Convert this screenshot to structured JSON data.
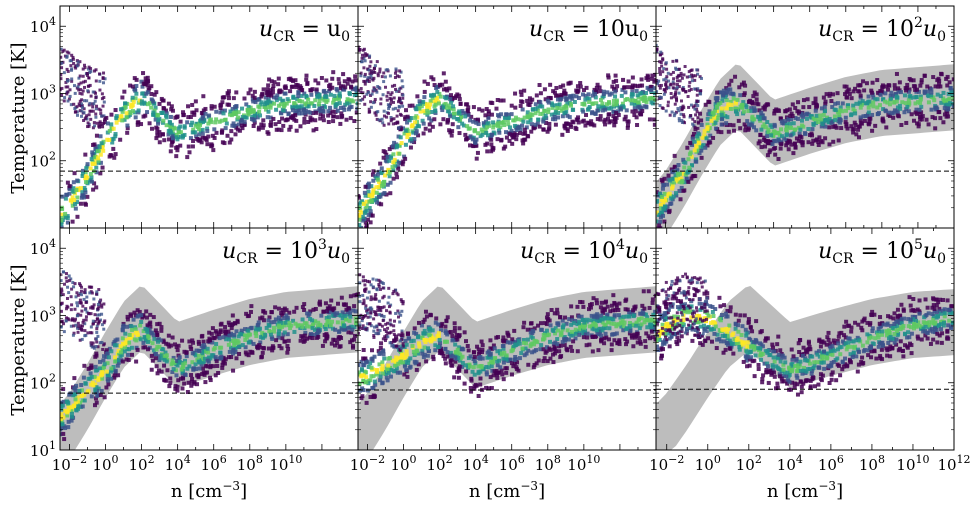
{
  "figure": {
    "ylabel": "Temperature [K]",
    "xlabel": "n [cm",
    "xlabel_sup": "−3",
    "xlabel_end": "]"
  },
  "chart_data": [
    {
      "type": "heatmap",
      "title": "u_CR = u0",
      "label_main": "u",
      "label_sub": "CR",
      "label_rhs": " = u",
      "label_rhs_sub": "0",
      "label_rhs_sup": "",
      "label_coeff": "",
      "xscale": "log",
      "yscale": "log",
      "xlim": [
        0.003,
        100000000000000
      ],
      "ylim": [
        10,
        20000
      ],
      "threshold_T": 70,
      "gray_ref": false,
      "colormap": [
        "#440154",
        "#3b528b",
        "#21918c",
        "#5ec962",
        "#fde725"
      ],
      "ridge": {
        "n": [
          0.003,
          0.01,
          0.1,
          1,
          10,
          100,
          10000,
          1000000,
          100000000,
          10000000000,
          100000000000000
        ],
        "T": [
          15,
          22,
          60,
          180,
          500,
          900,
          250,
          380,
          550,
          700,
          850
        ]
      },
      "hot_branch": {
        "n": [
          0.003,
          0.01,
          0.1,
          1
        ],
        "T": [
          2000,
          1500,
          900,
          800
        ]
      }
    },
    {
      "type": "heatmap",
      "title": "u_CR = 10u0",
      "label_main": "u",
      "label_sub": "CR",
      "label_rhs": " = 10u",
      "label_rhs_sub": "0",
      "label_rhs_sup": "",
      "label_coeff": "",
      "xscale": "log",
      "yscale": "log",
      "xlim": [
        0.003,
        100000000000000
      ],
      "ylim": [
        10,
        20000
      ],
      "threshold_T": 70,
      "gray_ref": false,
      "colormap": [
        "#440154",
        "#3b528b",
        "#21918c",
        "#5ec962",
        "#fde725"
      ],
      "ridge": {
        "n": [
          0.003,
          0.01,
          0.1,
          1,
          10,
          100,
          10000,
          1000000,
          100000000,
          10000000000,
          100000000000000
        ],
        "T": [
          15,
          25,
          60,
          190,
          550,
          850,
          260,
          380,
          560,
          700,
          850
        ]
      },
      "hot_branch": {
        "n": [
          0.003,
          0.01,
          0.1,
          1
        ],
        "T": [
          2000,
          1500,
          900,
          800
        ]
      }
    },
    {
      "type": "heatmap",
      "title": "u_CR = 10^2 u0",
      "label_main": "u",
      "label_sub": "CR",
      "label_rhs": " = 10",
      "label_rhs_sup": "2",
      "label_rhs_sub": "0",
      "label_coeff": "u",
      "xscale": "log",
      "yscale": "log",
      "xlim": [
        0.003,
        100000000000000
      ],
      "ylim": [
        10,
        20000
      ],
      "threshold_T": 70,
      "gray_ref": true,
      "colormap": [
        "#440154",
        "#3b528b",
        "#21918c",
        "#5ec962",
        "#fde725"
      ],
      "ridge": {
        "n": [
          0.003,
          0.01,
          0.1,
          1,
          10,
          100,
          10000,
          1000000,
          100000000,
          10000000000,
          100000000000000
        ],
        "T": [
          18,
          28,
          65,
          220,
          600,
          700,
          250,
          380,
          560,
          700,
          850
        ]
      },
      "hot_branch": {
        "n": [
          0.003,
          0.01,
          0.1,
          1
        ],
        "T": [
          2000,
          1500,
          950,
          800
        ]
      }
    },
    {
      "type": "heatmap",
      "title": "u_CR = 10^3 u0",
      "label_main": "u",
      "label_sub": "CR",
      "label_rhs": " = 10",
      "label_rhs_sup": "3",
      "label_rhs_sub": "0",
      "label_coeff": "u",
      "xscale": "log",
      "yscale": "log",
      "xlim": [
        0.003,
        100000000000000
      ],
      "ylim": [
        10,
        20000
      ],
      "threshold_T": 70,
      "gray_ref": true,
      "colormap": [
        "#440154",
        "#3b528b",
        "#21918c",
        "#5ec962",
        "#fde725"
      ],
      "ridge": {
        "n": [
          0.003,
          0.01,
          0.1,
          1,
          10,
          100,
          10000,
          1000000,
          100000000,
          10000000000,
          100000000000000
        ],
        "T": [
          30,
          40,
          80,
          150,
          400,
          600,
          160,
          300,
          500,
          700,
          850
        ]
      },
      "hot_branch": {
        "n": [
          0.003,
          0.01,
          0.1,
          1
        ],
        "T": [
          1800,
          1400,
          1000,
          800
        ]
      }
    },
    {
      "type": "heatmap",
      "title": "u_CR = 10^4 u0",
      "label_main": "u",
      "label_sub": "CR",
      "label_rhs": " = 10",
      "label_rhs_sup": "4",
      "label_rhs_sub": "0",
      "label_coeff": "u",
      "xscale": "log",
      "yscale": "log",
      "xlim": [
        0.003,
        100000000000000
      ],
      "ylim": [
        10,
        20000
      ],
      "threshold_T": 78,
      "gray_ref": true,
      "colormap": [
        "#440154",
        "#3b528b",
        "#21918c",
        "#5ec962",
        "#fde725"
      ],
      "ridge": {
        "n": [
          0.003,
          0.01,
          0.1,
          1,
          10,
          100,
          10000,
          1000000,
          100000000,
          10000000000,
          100000000000000
        ],
        "T": [
          115,
          130,
          180,
          250,
          400,
          500,
          160,
          300,
          500,
          700,
          850
        ]
      },
      "hot_branch": {
        "n": [
          0.003,
          0.01,
          0.1,
          1
        ],
        "T": [
          1500,
          1400,
          1100,
          800
        ]
      }
    },
    {
      "type": "heatmap",
      "title": "u_CR = 10^5 u0",
      "label_main": "u",
      "label_sub": "CR",
      "label_rhs": " = 10",
      "label_rhs_sup": "5",
      "label_rhs_sub": "0",
      "label_coeff": "u",
      "xscale": "log",
      "yscale": "log",
      "xlim": [
        0.003,
        1000000000000
      ],
      "ylim": [
        10,
        20000
      ],
      "threshold_T": 80,
      "gray_ref": true,
      "colormap": [
        "#440154",
        "#3b528b",
        "#21918c",
        "#5ec962",
        "#fde725"
      ],
      "ridge": {
        "n": [
          0.003,
          0.01,
          0.1,
          1,
          10,
          100,
          10000,
          1000000,
          100000000,
          10000000000,
          1000000000000
        ],
        "T": [
          500,
          700,
          1000,
          900,
          600,
          350,
          150,
          250,
          450,
          700,
          950
        ]
      },
      "hot_branch": {
        "n": [
          0.003,
          0.01,
          0.1,
          1
        ],
        "T": [
          800,
          1200,
          1500,
          1200
        ]
      }
    }
  ],
  "axes": {
    "x_ticks": [
      {
        "base": "10",
        "exp": "−2",
        "value": 0.01
      },
      {
        "base": "10",
        "exp": "0",
        "value": 1
      },
      {
        "base": "10",
        "exp": "2",
        "value": 100
      },
      {
        "base": "10",
        "exp": "4",
        "value": 10000
      },
      {
        "base": "10",
        "exp": "6",
        "value": 1000000
      },
      {
        "base": "10",
        "exp": "8",
        "value": 100000000
      },
      {
        "base": "10",
        "exp": "10",
        "value": 10000000000
      }
    ],
    "x_ticks_last_panel": [
      {
        "base": "10",
        "exp": "−2",
        "value": 0.01
      },
      {
        "base": "10",
        "exp": "0",
        "value": 1
      },
      {
        "base": "10",
        "exp": "2",
        "value": 100
      },
      {
        "base": "10",
        "exp": "4",
        "value": 10000
      },
      {
        "base": "10",
        "exp": "6",
        "value": 1000000
      },
      {
        "base": "10",
        "exp": "8",
        "value": 100000000
      },
      {
        "base": "10",
        "exp": "10",
        "value": 10000000000
      },
      {
        "base": "10",
        "exp": "12",
        "value": 1000000000000
      }
    ],
    "y_ticks_top": [
      {
        "base": "10",
        "exp": "2",
        "value": 100
      },
      {
        "base": "10",
        "exp": "3",
        "value": 1000
      },
      {
        "base": "10",
        "exp": "4",
        "value": 10000
      }
    ],
    "y_ticks_bottom": [
      {
        "base": "10",
        "exp": "1",
        "value": 10
      },
      {
        "base": "10",
        "exp": "2",
        "value": 100
      },
      {
        "base": "10",
        "exp": "3",
        "value": 1000
      },
      {
        "base": "10",
        "exp": "4",
        "value": 10000
      }
    ]
  }
}
